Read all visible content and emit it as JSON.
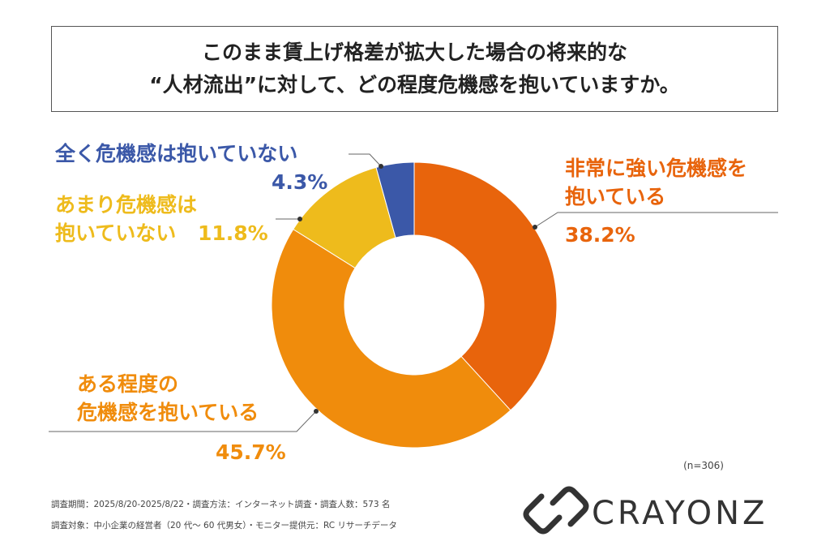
{
  "chart_data": {
    "type": "donut",
    "title": "このまま賃上げ格差が拡大した場合の将来的な\n“人材流出”に対して、どの程度危機感を抱いていますか。",
    "categories": [
      "非常に強い危機感を\n抱いている",
      "ある程度の\n危機感を抱いている",
      "あまり危機感は\n抱いていない",
      "全く危機感は抱いていない"
    ],
    "values": [
      38.2,
      45.7,
      11.8,
      4.3
    ],
    "value_labels": [
      "38.2%",
      "45.7%",
      "11.8%",
      "4.3%"
    ],
    "colors": [
      "#e8640c",
      "#f08c0c",
      "#eebb1c",
      "#3b58a8"
    ],
    "note": "(n=306)",
    "footnotes": [
      "調査期間：2025/8/20-2025/8/22・調査方法：インターネット調査・調査人数：573 名",
      "調査対象：中小企業の経営者（20 代〜 60 代男女）・モニター提供元：RC リサーチデータ"
    ],
    "brand": "CRAYONZ"
  }
}
